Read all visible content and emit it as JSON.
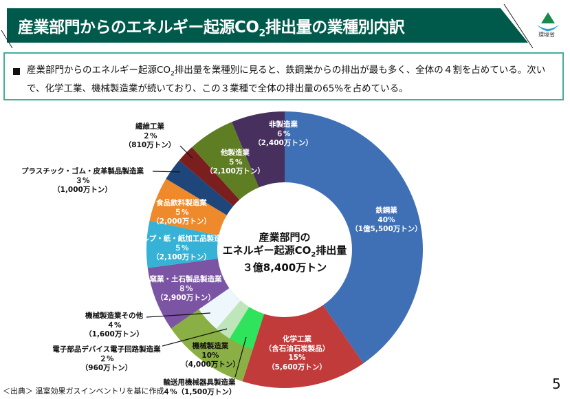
{
  "header": {
    "title_pre": "産業部門からのエネルギー起源CO",
    "title_sub": "2",
    "title_post": "排出量の業種別内訳",
    "logo_text": "環境省",
    "bar_color": "#005a4b"
  },
  "summary": {
    "pre": "産業部門からのエネルギー起源CO",
    "sub": "2",
    "post": "排出量を業種別に見ると、鉄鋼業からの排出が最も多く、全体の４割を占めている。次いで、化学工業、機械製造業が続いており、この３業種で全体の排出量の65%を占めている。"
  },
  "chart_data": {
    "type": "pie",
    "donut": true,
    "center_label": {
      "line1": "産業部門の",
      "line2_pre": "エネルギー起源CO",
      "line2_sub": "2",
      "line2_post": "排出量",
      "line3": "３億8,400万トン"
    },
    "unit": "万トン",
    "slices": [
      {
        "name": "鉄鋼業",
        "percent": "40%",
        "amount": "（1億5,500万トン）",
        "value": 15500,
        "color": "#3f70b6"
      },
      {
        "name": "化学工業\n（含石油石炭製品）",
        "percent": "15%",
        "amount": "（5,600万トン）",
        "value": 5600,
        "color": "#c13b3b"
      },
      {
        "name": "機械製造業",
        "percent": "10%",
        "amount": "（4,000万トン）",
        "value": 4000,
        "color": "#8aaf45",
        "sub": [
          {
            "name": "輸送用機械器具製造業",
            "percent": "４%",
            "amount": "（1,500万トン）",
            "value": 1500,
            "color": "#2fe35c"
          },
          {
            "name": "電子部品デバイス電子回路製造業",
            "percent": "２%",
            "amount": "（960万トン）",
            "value": 960,
            "color": "#bfe6bb"
          },
          {
            "name": "機械製造業その他",
            "percent": "４%",
            "amount": "（1,600万トン）",
            "value": 1600,
            "color": "#eef7fb"
          }
        ]
      },
      {
        "name": "窯業・土石製品製造業",
        "percent": "８%",
        "amount": "（2,900万トン）",
        "value": 2900,
        "color": "#7b55a4"
      },
      {
        "name": "パルプ・紙・紙加工品製造業",
        "percent": "５%",
        "amount": "（2,100万トン）",
        "value": 2100,
        "color": "#36b2d6"
      },
      {
        "name": "食品飲料製造業",
        "percent": "５%",
        "amount": "（2,000万トン）",
        "value": 2000,
        "color": "#ee8a2b"
      },
      {
        "name": "プラスチック・ゴム・皮革製品製造業",
        "percent": "３%",
        "amount": "（1,000万トン）",
        "value": 1000,
        "color": "#1f467a"
      },
      {
        "name": "繊維工業",
        "percent": "２%",
        "amount": "（810万トン）",
        "value": 810,
        "color": "#7b1e1e"
      },
      {
        "name": "他製造業",
        "percent": "５%",
        "amount": "（2,100万トン）",
        "value": 2100,
        "color": "#5f7e23"
      },
      {
        "name": "非製造業",
        "percent": "６%",
        "amount": "（2,400万トン）",
        "value": 2400,
        "color": "#472f5e"
      }
    ]
  },
  "footer": {
    "source": "＜出典＞ 温室効果ガスインベントリを基に作成",
    "page": "5"
  }
}
